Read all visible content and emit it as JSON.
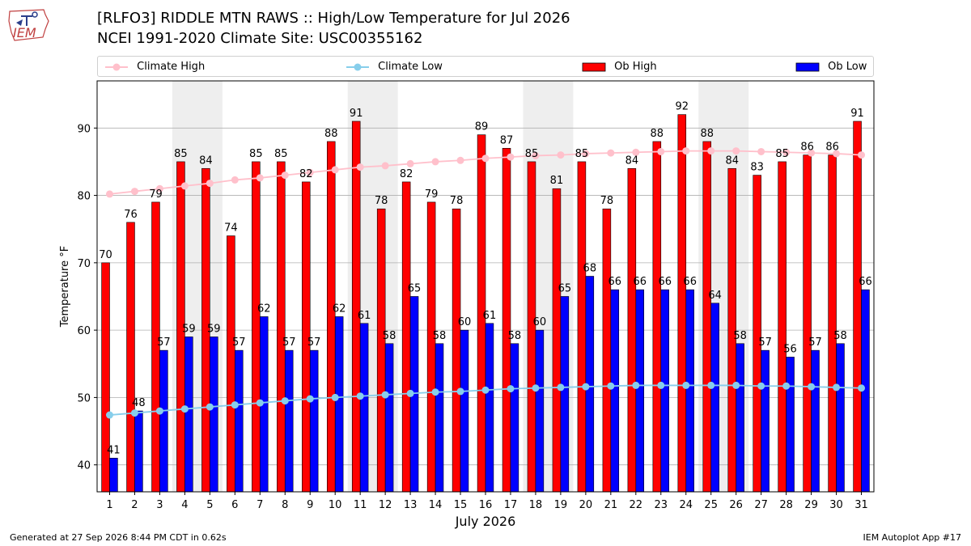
{
  "header": {
    "title_line1": "[RLFO3] RIDDLE MTN RAWS :: High/Low Temperature for Jul 2026",
    "title_line2": "NCEI 1991-2020 Climate Site: USC00355162"
  },
  "logo": {
    "text": "IEM",
    "icon": "iowa-state-outline-logo"
  },
  "footer": {
    "left": "Generated at 27 Sep 2026 8:44 PM CDT in 0.62s",
    "right": "IEM Autoplot App #17"
  },
  "colors": {
    "ob_high": "#ff0000",
    "ob_low": "#0000ff",
    "climate_high": "#ffc0cb",
    "climate_low": "#87ceeb",
    "weekend_shade": "#eeeeee",
    "grid": "#b0b0b0"
  },
  "chart_data": {
    "type": "bar",
    "xlabel": "July 2026",
    "ylabel": "Temperature °F",
    "ylim": [
      36,
      97
    ],
    "yticks": [
      40,
      50,
      60,
      70,
      80,
      90
    ],
    "grid": "horizontal",
    "legend_placement": "top",
    "shaded_days": [
      [
        4,
        5
      ],
      [
        11,
        12
      ],
      [
        18,
        19
      ],
      [
        25,
        26
      ]
    ],
    "categories": [
      "1",
      "2",
      "3",
      "4",
      "5",
      "6",
      "7",
      "8",
      "9",
      "10",
      "11",
      "12",
      "13",
      "14",
      "15",
      "16",
      "17",
      "18",
      "19",
      "20",
      "21",
      "22",
      "23",
      "24",
      "25",
      "26",
      "27",
      "28",
      "29",
      "30",
      "31"
    ],
    "series": [
      {
        "name": "Climate High",
        "kind": "line",
        "values": [
          80.2,
          80.6,
          81.0,
          81.4,
          81.8,
          82.3,
          82.6,
          83.0,
          83.4,
          83.8,
          84.2,
          84.4,
          84.7,
          85.0,
          85.2,
          85.5,
          85.7,
          85.9,
          86.0,
          86.2,
          86.3,
          86.4,
          86.5,
          86.6,
          86.6,
          86.6,
          86.5,
          86.4,
          86.3,
          86.2,
          86.0
        ]
      },
      {
        "name": "Climate Low",
        "kind": "line",
        "values": [
          47.4,
          47.7,
          48.0,
          48.3,
          48.6,
          48.9,
          49.2,
          49.5,
          49.8,
          50.0,
          50.2,
          50.4,
          50.6,
          50.8,
          50.9,
          51.1,
          51.3,
          51.4,
          51.5,
          51.6,
          51.7,
          51.8,
          51.8,
          51.8,
          51.8,
          51.8,
          51.7,
          51.7,
          51.6,
          51.5,
          51.4
        ]
      },
      {
        "name": "Ob High",
        "kind": "bar",
        "values": [
          70,
          76,
          79,
          85,
          84,
          74,
          85,
          85,
          82,
          88,
          91,
          78,
          82,
          79,
          78,
          89,
          87,
          85,
          81,
          85,
          78,
          84,
          88,
          92,
          88,
          84,
          83,
          85,
          86,
          86,
          91
        ]
      },
      {
        "name": "Ob Low",
        "kind": "bar",
        "values": [
          41,
          48,
          57,
          59,
          59,
          57,
          62,
          57,
          57,
          62,
          61,
          58,
          65,
          58,
          60,
          61,
          58,
          60,
          65,
          68,
          66,
          66,
          66,
          66,
          64,
          58,
          57,
          56,
          57,
          58,
          66
        ]
      }
    ]
  }
}
